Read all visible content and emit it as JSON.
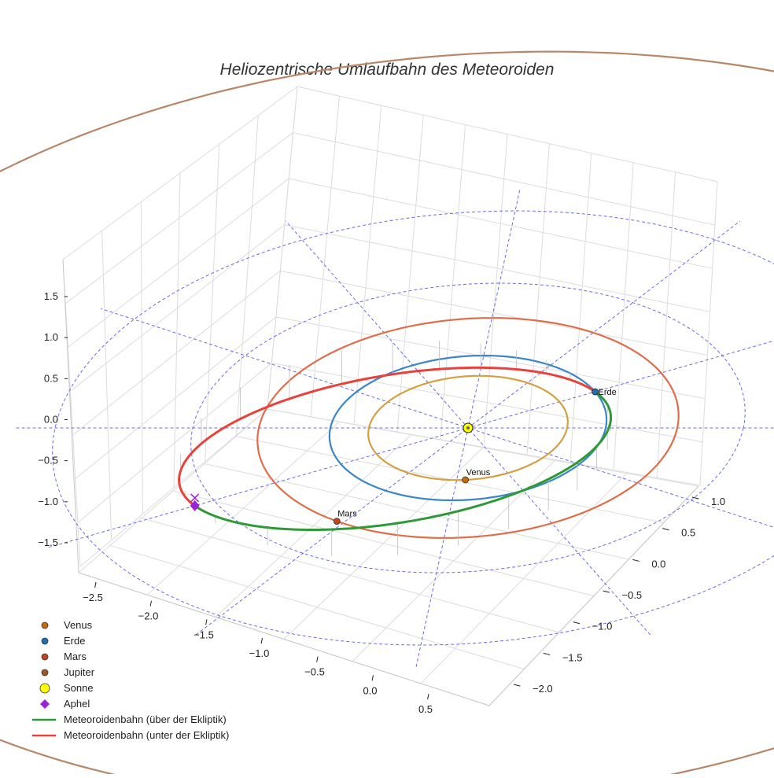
{
  "chart_data": {
    "type": "3d-orbit",
    "title": "Heliozentrische Umlaufbahn des Meteoroiden",
    "axes": {
      "x": {
        "label": "",
        "range": [
          -2.5,
          0.5
        ],
        "ticks": [
          -2.5,
          -2.0,
          -1.5,
          -1.0,
          -0.5,
          0.0,
          0.5
        ],
        "tick_labels": [
          "−2.5",
          "−2.0",
          "−1.5",
          "−1.0",
          "−0.5",
          "0.0",
          "0.5"
        ]
      },
      "y": {
        "label": "",
        "range": [
          -2.0,
          1.0
        ],
        "ticks": [
          -2.0,
          -1.5,
          -1.0,
          -0.5,
          0.0,
          0.5,
          1.0
        ],
        "tick_labels": [
          "−2.0",
          "−1.5",
          "−1.0",
          "−0.5",
          "0.0",
          "0.5",
          "1.0"
        ]
      },
      "z": {
        "label": "",
        "range": [
          -1.5,
          1.5
        ],
        "ticks": [
          -1.5,
          -1.0,
          -0.5,
          0.0,
          0.5,
          1.0,
          1.5
        ],
        "tick_labels": [
          "−1.5",
          "−1.0",
          "−0.5",
          "0.0",
          "0.5",
          "1.0",
          "1.5"
        ]
      }
    },
    "grid": true,
    "orbits": [
      {
        "name": "Venus",
        "radius_au": 0.72,
        "color": "#d4a042"
      },
      {
        "name": "Erde",
        "radius_au": 1.0,
        "color": "#3a86c8"
      },
      {
        "name": "Mars",
        "radius_au": 1.52,
        "color": "#de6e49"
      },
      {
        "name": "Jupiter",
        "radius_au": 5.2,
        "color": "#b8876a"
      }
    ],
    "ecliptic_reference_circles_au": [
      1.0,
      2.0,
      3.0
    ],
    "points": [
      {
        "name": "Venus",
        "label": "Venus",
        "color": "#c46a12",
        "angle_deg": 85
      },
      {
        "name": "Erde",
        "label": "Erde",
        "color": "#1f6fb4",
        "angle_deg": -30
      },
      {
        "name": "Mars",
        "label": "Mars",
        "color": "#c0461c",
        "angle_deg": 122
      },
      {
        "name": "Sonne",
        "label": "",
        "color": "#ffff00"
      },
      {
        "name": "Aphel",
        "label": "",
        "color": "#9b22d8",
        "z_au": 1.3
      }
    ],
    "meteoroid_orbit": {
      "perihelion_au": 1.0,
      "aphelion_au": 2.15,
      "above_ecliptic": {
        "name": "Meteoroidenbahn (über der Ekliptik)",
        "color": "#2e9a36"
      },
      "below_ecliptic": {
        "name": "Meteoroidenbahn (unter der Ekliptik)",
        "color": "#e8423c"
      }
    },
    "legend": {
      "placement": "bottom-left",
      "entries": [
        {
          "label": "Venus",
          "marker": "circle",
          "color": "#c46a12"
        },
        {
          "label": "Erde",
          "marker": "circle",
          "color": "#1f6fb4"
        },
        {
          "label": "Mars",
          "marker": "circle",
          "color": "#c0461c"
        },
        {
          "label": "Jupiter",
          "marker": "circle",
          "color": "#9a5a28"
        },
        {
          "label": "Sonne",
          "marker": "circle",
          "color": "#ffff00"
        },
        {
          "label": "Aphel",
          "marker": "diamond",
          "color": "#9b22d8"
        },
        {
          "label": "Meteoroidenbahn (über der Ekliptik)",
          "marker": "line",
          "color": "#2e9a36"
        },
        {
          "label": "Meteoroidenbahn (unter der Ekliptik)",
          "marker": "line",
          "color": "#e8423c"
        }
      ]
    }
  }
}
